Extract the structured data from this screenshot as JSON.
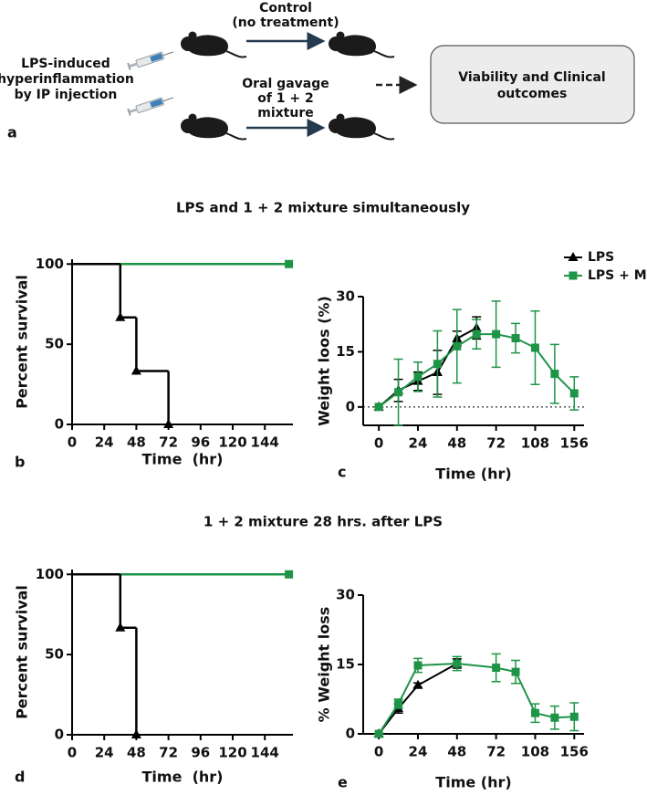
{
  "diagram": {
    "label": "a",
    "left_text": [
      "LPS-induced",
      "hyperinflammation",
      "by IP injection"
    ],
    "top_arrow": [
      "Control",
      "(no treatment)"
    ],
    "bottom_arrow": [
      "Oral gavage",
      "of 1 + 2",
      "mixture"
    ],
    "outcome": [
      "Viability and Clinical",
      "outcomes"
    ]
  },
  "sections": [
    "LPS and 1 + 2 mixture simultaneously",
    "1 + 2 mixture 28 hrs. after LPS"
  ],
  "chart_data": [
    {
      "type": "survival",
      "panel": "b",
      "x_label": "Time  (hr)",
      "y_label": "Percent survival",
      "xlim": [
        0,
        165
      ],
      "ylim": [
        0,
        103
      ],
      "xticks": [
        0,
        24,
        48,
        72,
        96,
        120,
        144
      ],
      "yticks": [
        0,
        50,
        100
      ],
      "series": [
        {
          "color": "#1e9447",
          "marker": "square",
          "x": [
            0,
            162
          ],
          "values": [
            100,
            100
          ]
        },
        {
          "color": "#000000",
          "marker": "triangle",
          "x": [
            0,
            36,
            48,
            72
          ],
          "values": [
            100,
            66.7,
            33.3,
            0
          ]
        }
      ]
    },
    {
      "type": "line",
      "panel": "c",
      "x_label": "Time (hr)",
      "y_label": "Weight loos (%)",
      "xlim": [
        -0.8,
        10.5
      ],
      "ylim": [
        -5,
        30
      ],
      "zero_line": true,
      "legend": "upper right",
      "xticks": [
        {
          "value": 0,
          "label": "0"
        },
        {
          "value": 2,
          "label": "24"
        },
        {
          "value": 4,
          "label": "48"
        },
        {
          "value": 6,
          "label": "72"
        },
        {
          "value": 8,
          "label": "108"
        },
        {
          "value": 10,
          "label": "156"
        }
      ],
      "yticks": [
        0,
        15,
        30
      ],
      "series": [
        {
          "name": "LPS",
          "color": "#000000",
          "marker": "triangle",
          "x": [
            0,
            1,
            2,
            3,
            4,
            5
          ],
          "values": [
            0,
            4.5,
            7,
            9.4,
            18.6,
            21.5
          ],
          "errors": [
            0,
            3,
            2.5,
            6,
            2,
            3
          ]
        },
        {
          "name": "LPS + M",
          "color": "#1e9447",
          "marker": "square",
          "x": [
            0,
            1,
            2,
            3,
            4,
            5,
            6,
            7,
            8,
            9,
            10
          ],
          "values": [
            0,
            4,
            8.2,
            11.7,
            16.5,
            19.8,
            19.8,
            18.7,
            16.1,
            9,
            3.7
          ],
          "errors": [
            0,
            9,
            4,
            9,
            10,
            4,
            9,
            4,
            10,
            8,
            4.5
          ]
        }
      ]
    },
    {
      "type": "survival",
      "panel": "d",
      "x_label": "Time  (hr)",
      "y_label": "Percent survival",
      "xlim": [
        0,
        165
      ],
      "ylim": [
        0,
        103
      ],
      "xticks": [
        0,
        24,
        48,
        72,
        96,
        120,
        144
      ],
      "yticks": [
        0,
        50,
        100
      ],
      "series": [
        {
          "color": "#1e9447",
          "marker": "square",
          "x": [
            0,
            162
          ],
          "values": [
            100,
            100
          ]
        },
        {
          "color": "#000000",
          "marker": "triangle",
          "x": [
            0,
            36,
            48
          ],
          "values": [
            100,
            66.7,
            0
          ]
        }
      ]
    },
    {
      "type": "line",
      "panel": "e",
      "x_label": "Time (hr)",
      "y_label": "% Weight loss",
      "xlim": [
        -0.8,
        10.5
      ],
      "ylim": [
        0,
        30
      ],
      "xticks": [
        {
          "value": 0,
          "label": "0"
        },
        {
          "value": 2,
          "label": "24"
        },
        {
          "value": 4,
          "label": "48"
        },
        {
          "value": 6,
          "label": "72"
        },
        {
          "value": 8,
          "label": "108"
        },
        {
          "value": 10,
          "label": "156"
        }
      ],
      "yticks": [
        0,
        15,
        30
      ],
      "series": [
        {
          "color": "#000000",
          "marker": "triangle",
          "x": [
            0,
            1,
            2,
            4
          ],
          "values": [
            0,
            5.5,
            10.5,
            15.2
          ],
          "errors": [
            0,
            1,
            0.5,
            1
          ]
        },
        {
          "color": "#1e9447",
          "marker": "square",
          "x": [
            0,
            1,
            2,
            4,
            6,
            7,
            8,
            9,
            10
          ],
          "values": [
            0,
            6.5,
            14.8,
            15.2,
            14.3,
            13.4,
            4.5,
            3.5,
            3.7
          ],
          "errors": [
            0,
            1,
            1.5,
            1.5,
            3,
            2.5,
            2,
            2.5,
            3
          ]
        }
      ]
    }
  ]
}
